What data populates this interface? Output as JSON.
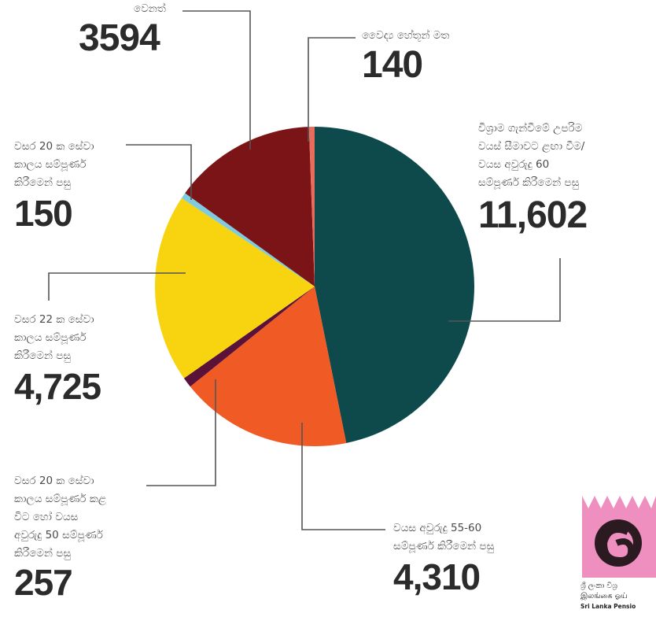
{
  "chart_data": {
    "type": "pie",
    "title": "",
    "slices": [
      {
        "key": "age_limit",
        "label": "විශ්‍රාම ගැන්වීමේ උපරිම\nවයස් සීමාවට ළඟා වීම/\nවයස අවුරුදු 60\nසම්පූර්ණ කිරීමෙන් පසු",
        "value_label": "11,602",
        "value": 11602,
        "color": "#0e4a4c"
      },
      {
        "key": "age_55_60",
        "label": "වයස අවුරුදු 55-60\nසම්පූර්ණ කිරීමෙන් පසු",
        "value_label": "4,310",
        "value": 4310,
        "color": "#f05a24"
      },
      {
        "key": "service_20_or_50",
        "label": "වසර 20 ක සේවා\nකාලය සම්පූර්ණ කළ\nවිට හෝ වයස\nඅවුරුදු 50 සම්පූර්ණ\nකිරීමෙන් පසු",
        "value_label": "257",
        "value": 257,
        "color": "#5a1238"
      },
      {
        "key": "service_22",
        "label": "වසර 22 ක සේවා\nකාලය සම්පූර්ණ\nකිරීමෙන් පසු",
        "value_label": "4,725",
        "value": 4725,
        "color": "#f8d30f"
      },
      {
        "key": "service_20",
        "label": "වසර 20 ක සේවා\nකාලය සම්පූර්ණ\nකිරීමෙන් පසු",
        "value_label": "150",
        "value": 150,
        "color": "#7fcbe0"
      },
      {
        "key": "other",
        "label": "වෙනත්",
        "value_label": "3594",
        "value": 3594,
        "color": "#7a1417"
      },
      {
        "key": "medical",
        "label": "වෛද්‍ය හේතූන් මත",
        "value_label": "140",
        "value": 140,
        "color": "#e76c5c"
      }
    ]
  },
  "logo": {
    "line1": "ශ්‍රී ලංකා විශ්‍ර",
    "line2": "இலங்கை ஓய்",
    "line3": "Sri Lanka Pensio",
    "colors": {
      "pink": "#ef8fbf",
      "ring": "#2b1b20"
    }
  }
}
